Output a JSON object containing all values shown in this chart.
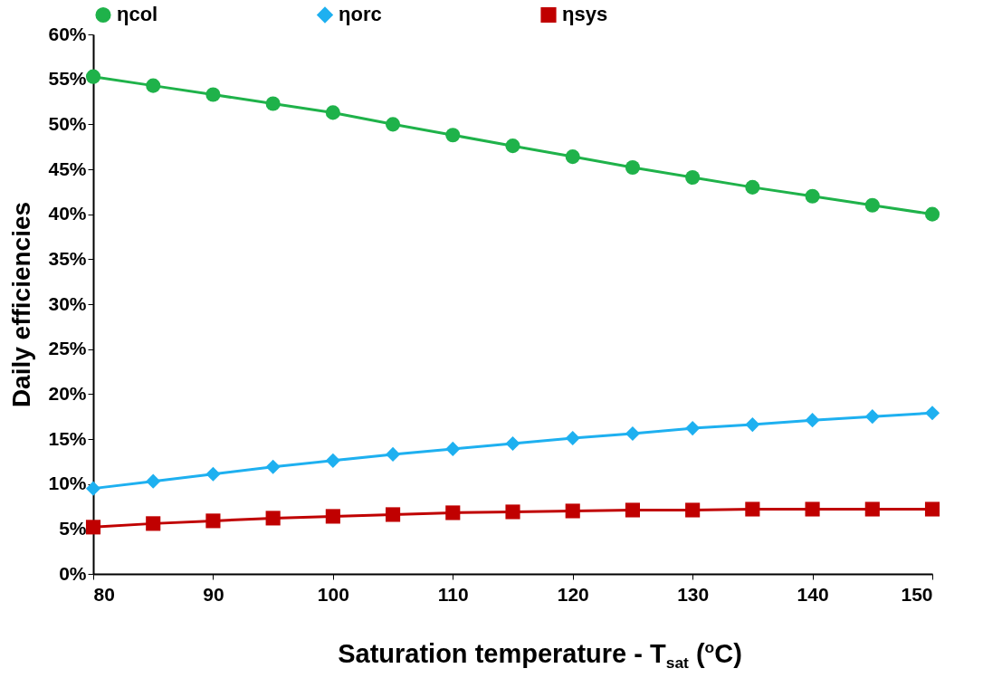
{
  "chart_data": {
    "type": "line",
    "xlabel": "Saturation temperature - T$_{sat}$ ($^{o}$C)",
    "ylabel": "Daily efficiencies",
    "x": [
      80,
      85,
      90,
      95,
      100,
      105,
      110,
      115,
      120,
      125,
      130,
      135,
      140,
      145,
      150
    ],
    "series": [
      {
        "name": "ηcol",
        "color": "#1fb24a",
        "marker": "circle",
        "values": [
          55.3,
          54.3,
          53.3,
          52.3,
          51.3,
          50.0,
          48.8,
          47.6,
          46.4,
          45.2,
          44.1,
          43.0,
          42.0,
          41.0,
          40.0
        ]
      },
      {
        "name": "ηorc",
        "color": "#1eb0f0",
        "marker": "diamond",
        "values": [
          9.5,
          10.3,
          11.1,
          11.9,
          12.6,
          13.3,
          13.9,
          14.5,
          15.1,
          15.6,
          16.2,
          16.6,
          17.1,
          17.5,
          17.9
        ]
      },
      {
        "name": "ηsys",
        "color": "#c00000",
        "marker": "square",
        "values": [
          5.2,
          5.6,
          5.9,
          6.2,
          6.4,
          6.6,
          6.8,
          6.9,
          7.0,
          7.1,
          7.1,
          7.2,
          7.2,
          7.2,
          7.2
        ]
      }
    ],
    "xlim": [
      80,
      150
    ],
    "xticks": [
      80,
      90,
      100,
      110,
      120,
      130,
      140,
      150
    ],
    "ylim": [
      0,
      60
    ],
    "yticks": [
      {
        "value": 0,
        "label": "0%"
      },
      {
        "value": 5,
        "label": "5%"
      },
      {
        "value": 10,
        "label": "10%"
      },
      {
        "value": 15,
        "label": "15%"
      },
      {
        "value": 20,
        "label": "20%"
      },
      {
        "value": 25,
        "label": "25%"
      },
      {
        "value": 30,
        "label": "30%"
      },
      {
        "value": 35,
        "label": "35%"
      },
      {
        "value": 40,
        "label": "40%"
      },
      {
        "value": 45,
        "label": "45%"
      },
      {
        "value": 50,
        "label": "50%"
      },
      {
        "value": 55,
        "label": "55%"
      },
      {
        "value": 60,
        "label": "60%"
      }
    ],
    "grid": false,
    "legend": "top",
    "line_style": "solid"
  }
}
